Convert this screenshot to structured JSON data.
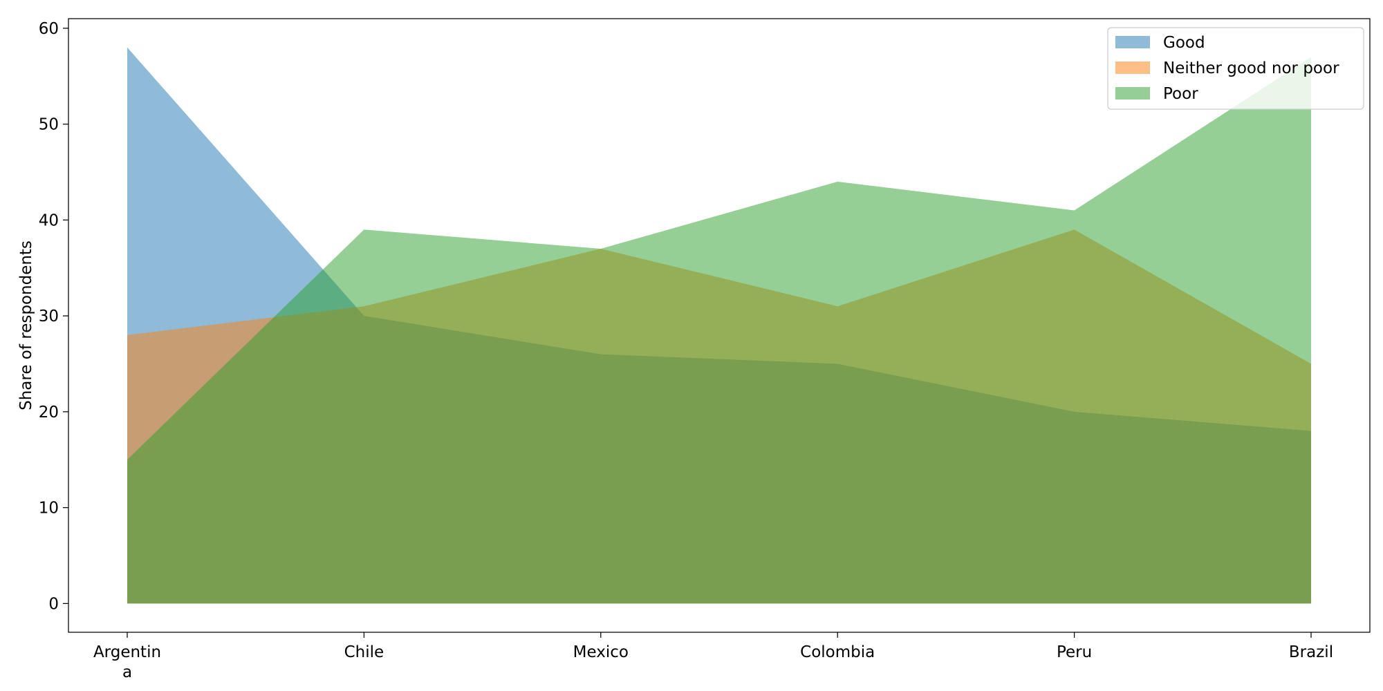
{
  "chart_data": {
    "type": "area",
    "title": "",
    "xlabel": "",
    "ylabel": "Share of respondents",
    "categories": [
      "Argentina",
      "Chile",
      "Mexico",
      "Colombia",
      "Peru",
      "Brazil"
    ],
    "category_tick_lines": [
      [
        "Argentin",
        "a"
      ],
      [
        "Chile"
      ],
      [
        "Mexico"
      ],
      [
        "Colombia"
      ],
      [
        "Peru"
      ],
      [
        "Brazil"
      ]
    ],
    "series": [
      {
        "name": "Good",
        "values": [
          58,
          30,
          26,
          25,
          20,
          18
        ],
        "color": "#1f77b4"
      },
      {
        "name": "Neither good nor poor",
        "values": [
          28,
          31,
          37,
          31,
          39,
          25
        ],
        "color": "#ff7f0e"
      },
      {
        "name": "Poor",
        "values": [
          15,
          39,
          37,
          44,
          41,
          57
        ],
        "color": "#2ca02c"
      }
    ],
    "fill_opacity": 0.5,
    "ylim": [
      -3,
      61
    ],
    "yticks": [
      0,
      10,
      20,
      30,
      40,
      50,
      60
    ],
    "grid": false,
    "legend_position": "top-right"
  }
}
